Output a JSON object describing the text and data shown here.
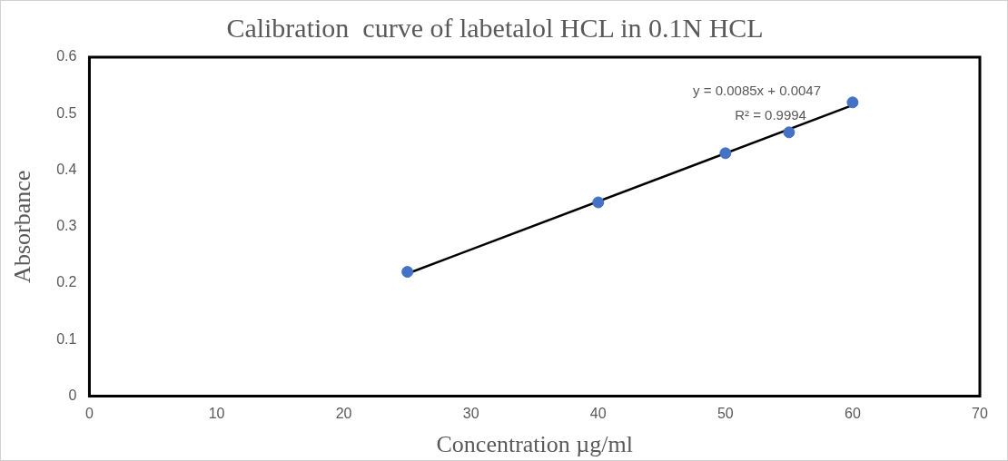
{
  "chart_data": {
    "type": "scatter",
    "title": "Calibration  curve of labetalol HCL in 0.1N HCL",
    "xlabel": "Concentration µg/ml",
    "ylabel": "Absorbance",
    "series": [
      {
        "color": "#4472c4",
        "marker": "circle",
        "x": [
          25,
          40,
          50,
          55,
          60
        ],
        "values": [
          0.22,
          0.343,
          0.43,
          0.467,
          0.52
        ]
      },
      {
        "type": "line",
        "color": "#000000",
        "marker": "none",
        "line_style": "solid",
        "x": [
          25,
          60
        ],
        "values": [
          0.217,
          0.515
        ]
      }
    ],
    "annotations": [
      "y = 0.0085x + 0.0047",
      "R² = 0.9994"
    ],
    "xlim": [
      0,
      70
    ],
    "xticks": [
      0,
      10,
      20,
      30,
      40,
      50,
      60,
      70
    ],
    "ylim": [
      0,
      0.6
    ],
    "yticks": [
      0,
      0.1,
      0.2,
      0.3,
      0.4,
      0.5,
      0.6
    ],
    "grid": false,
    "legend": false
  }
}
